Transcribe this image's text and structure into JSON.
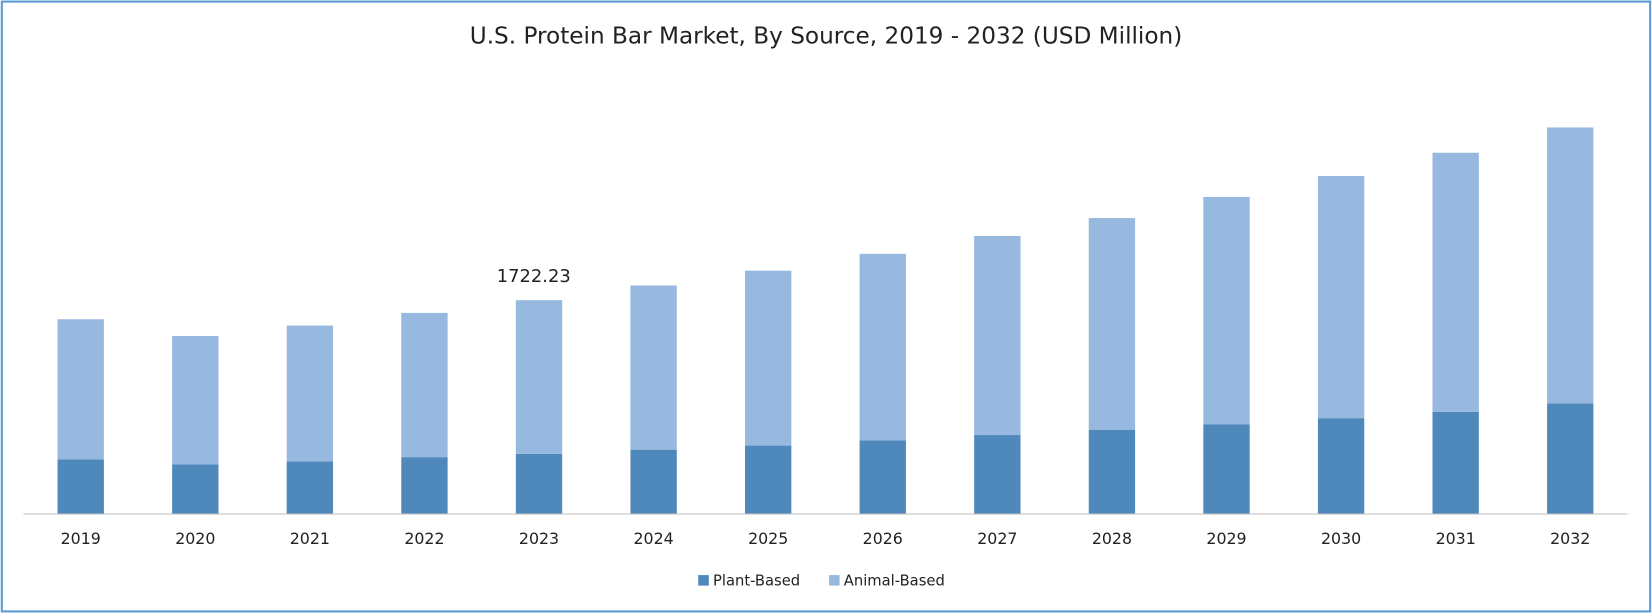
{
  "chart_data": {
    "type": "stacked-bar",
    "title": "U.S. Protein Bar Market, By Source, 2019 - 2032 (USD Million)",
    "categories": [
      "2019",
      "2020",
      "2021",
      "2022",
      "2023",
      "2024",
      "2025",
      "2026",
      "2027",
      "2028",
      "2029",
      "2030",
      "2031",
      "2032"
    ],
    "series": [
      {
        "name": "Plant-Based",
        "color": "#4f88bb",
        "values": [
          441,
          399,
          424,
          458,
          484.23,
          518,
          551,
          594,
          636,
          679,
          721,
          772,
          823,
          891
        ]
      },
      {
        "name": "Animal-Based",
        "color": "#97b8df",
        "values": [
          1128,
          1035,
          1094,
          1162,
          1238,
          1323,
          1409,
          1502,
          1604,
          1705,
          1833,
          1951,
          2087,
          2223
        ]
      }
    ],
    "annotations": [
      {
        "text": "1722.23",
        "category": "2023"
      }
    ],
    "legend": "bottom"
  }
}
